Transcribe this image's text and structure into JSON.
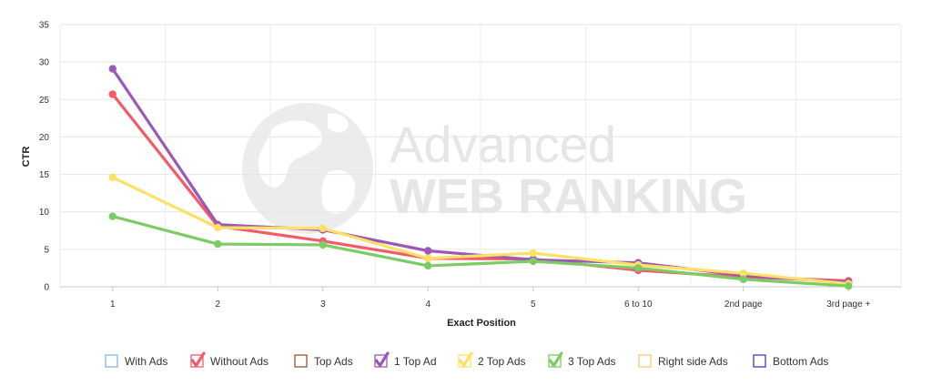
{
  "chart_data": {
    "type": "line",
    "title": "",
    "xlabel": "Exact Position",
    "ylabel": "CTR",
    "ylim": [
      0,
      35
    ],
    "yticks": [
      0,
      5,
      10,
      15,
      20,
      25,
      30,
      35
    ],
    "grid": true,
    "legend_position": "bottom",
    "categories": [
      "1",
      "2",
      "3",
      "4",
      "5",
      "6 to 10",
      "2nd page",
      "3rd page +"
    ],
    "legend": [
      {
        "name": "With Ads",
        "color": "#7cb5ec",
        "checked": false
      },
      {
        "name": "Without Ads",
        "color": "#f45b69",
        "checked": true
      },
      {
        "name": "Top Ads",
        "color": "#a0522d",
        "checked": false
      },
      {
        "name": "1 Top Ad",
        "color": "#9b59b6",
        "checked": true
      },
      {
        "name": "2 Top Ads",
        "color": "#ffe066",
        "checked": true
      },
      {
        "name": "3 Top Ads",
        "color": "#7ccc63",
        "checked": true
      },
      {
        "name": "Right side Ads",
        "color": "#f7c873",
        "checked": false
      },
      {
        "name": "Bottom Ads",
        "color": "#3a3ad6",
        "checked": false
      }
    ],
    "series": [
      {
        "name": "Without Ads",
        "color": "#f45b69",
        "values": [
          25.7,
          8.1,
          6.1,
          3.8,
          3.7,
          2.2,
          1.3,
          0.8
        ]
      },
      {
        "name": "1 Top Ad",
        "color": "#9b59b6",
        "values": [
          29.1,
          8.3,
          7.6,
          4.8,
          3.6,
          3.2,
          1.5,
          0.6
        ]
      },
      {
        "name": "2 Top Ads",
        "color": "#ffe066",
        "values": [
          14.6,
          7.9,
          7.8,
          3.8,
          4.5,
          2.9,
          1.8,
          0.4
        ]
      },
      {
        "name": "3 Top Ads",
        "color": "#7ccc63",
        "values": [
          9.4,
          5.7,
          5.6,
          2.8,
          3.4,
          2.5,
          1.0,
          0.1
        ]
      }
    ]
  },
  "watermark": {
    "line1": "Advanced",
    "line2": "WEB RANKING",
    "icon": "globe-icon"
  }
}
